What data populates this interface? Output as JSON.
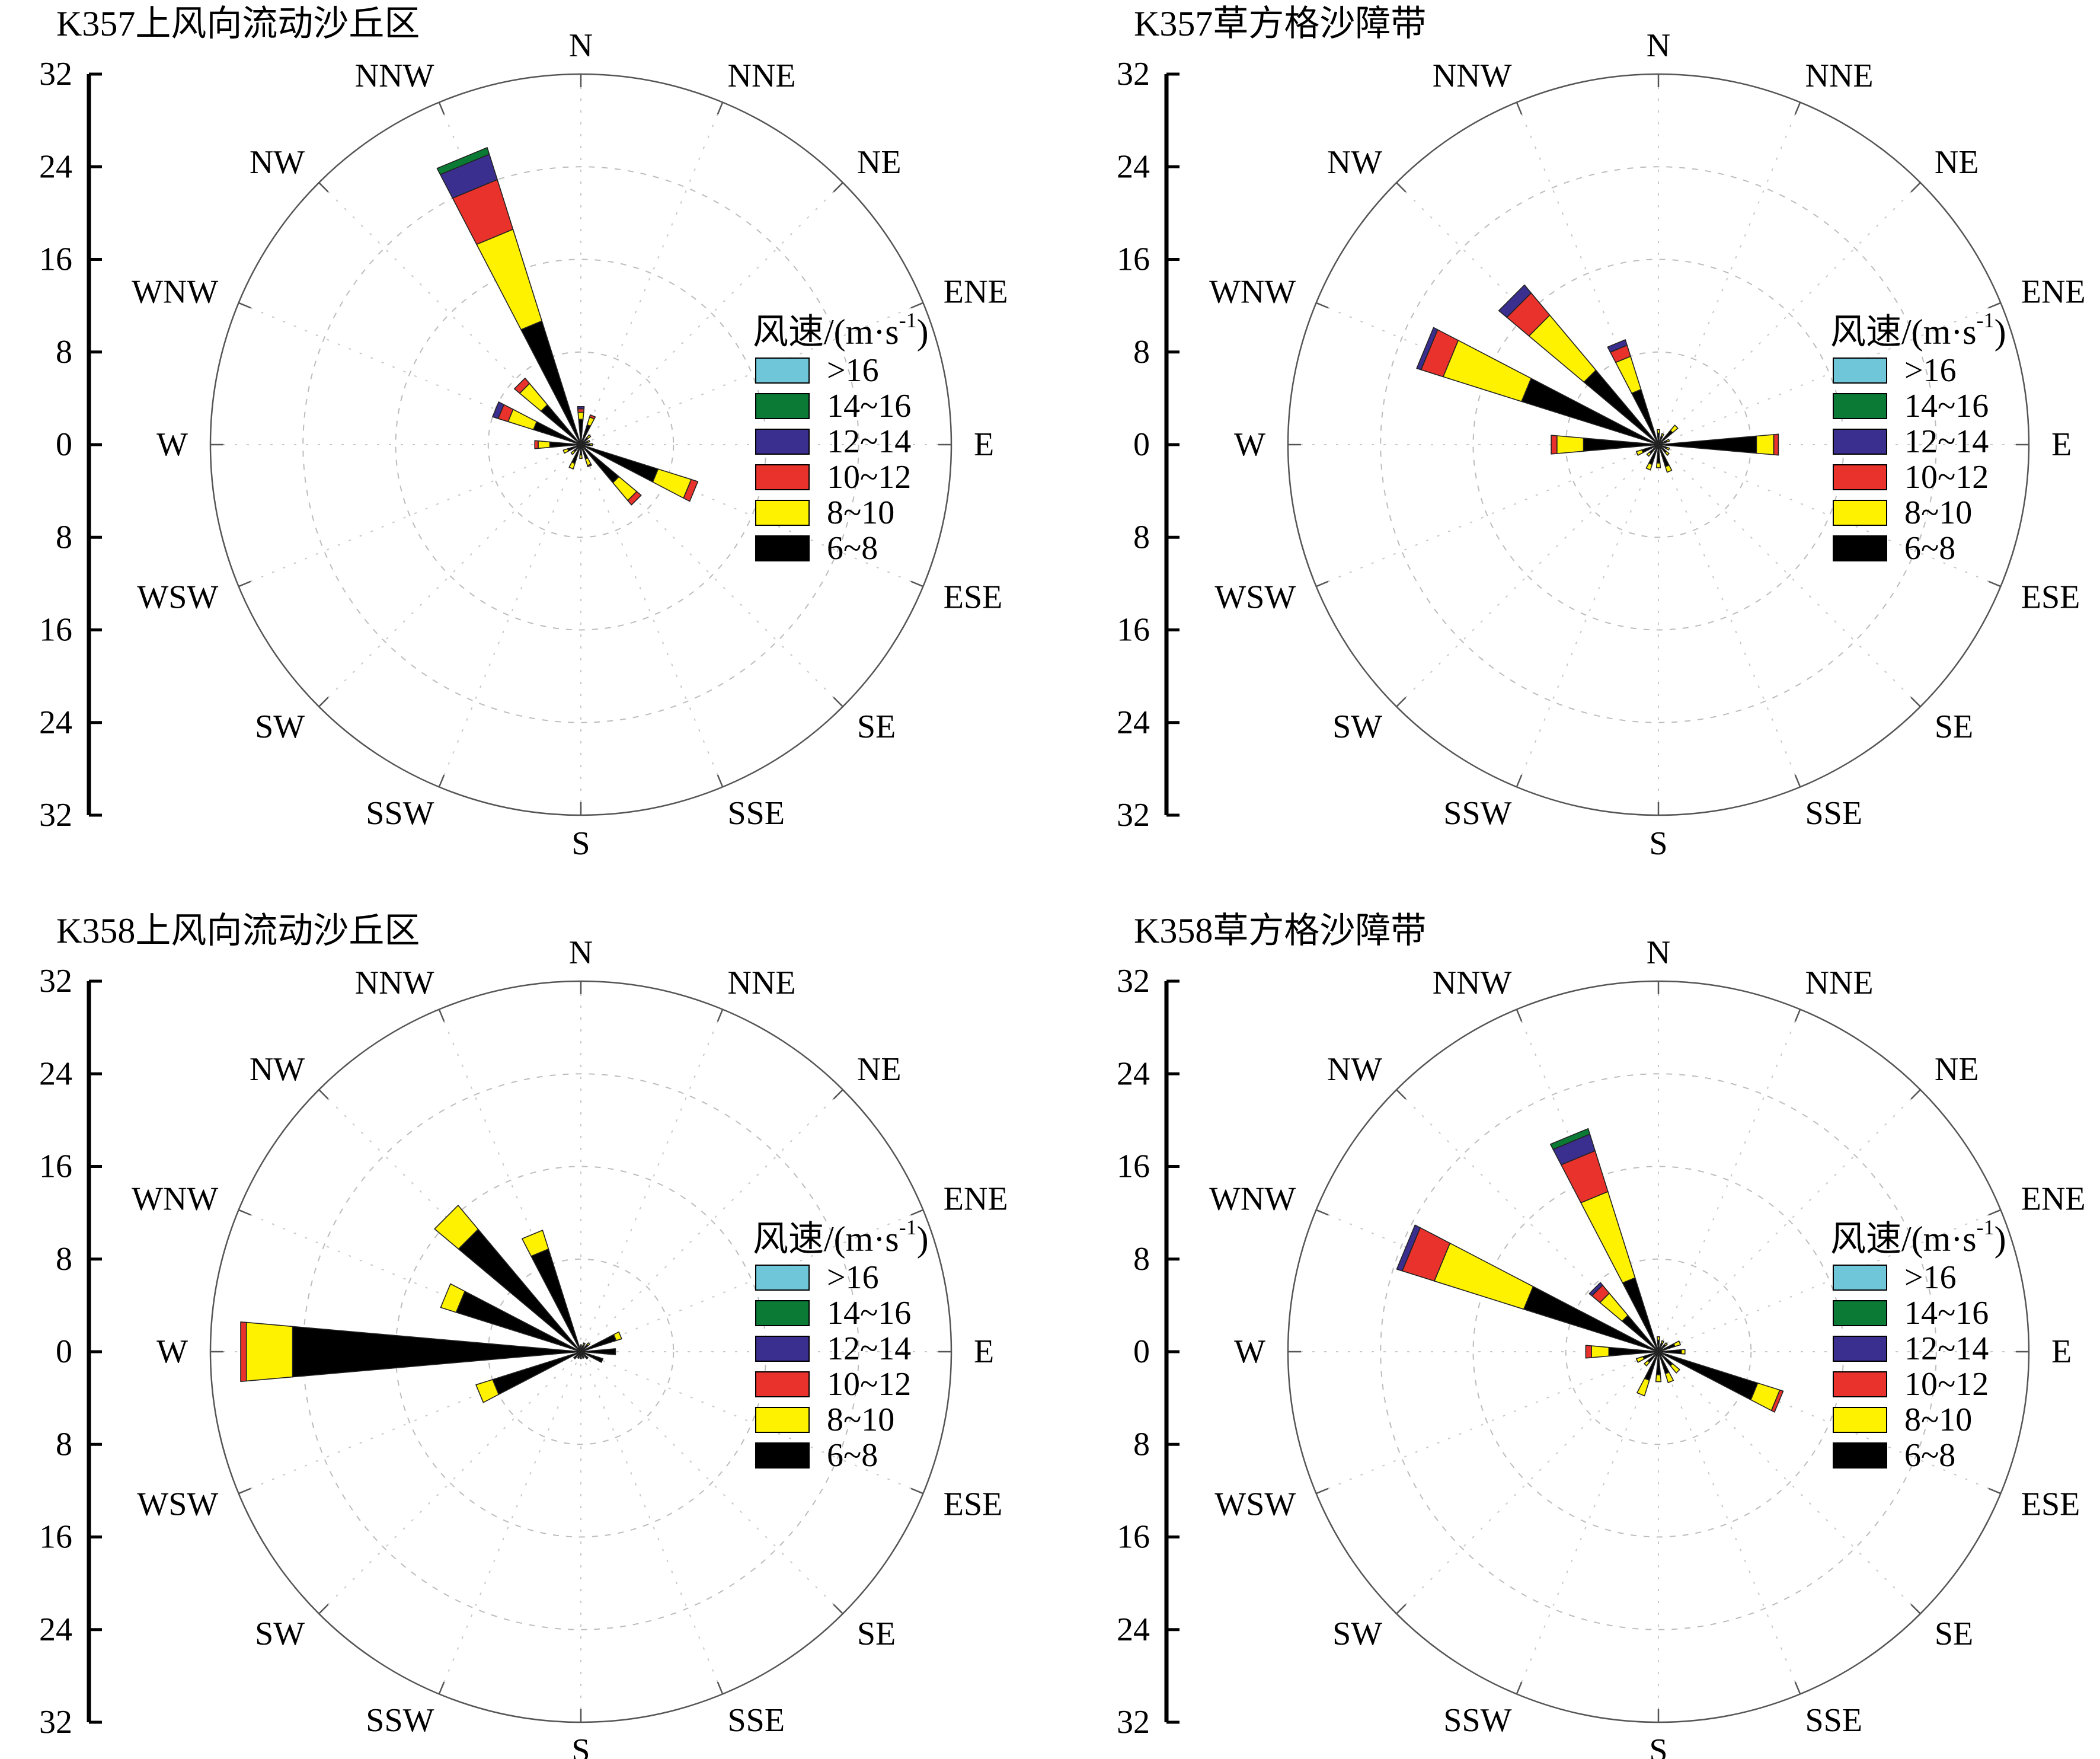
{
  "chart_data": [
    {
      "type": "wind-rose",
      "title": "K357上风向流动沙丘区",
      "directions": [
        "N",
        "NNE",
        "NE",
        "ENE",
        "E",
        "ESE",
        "SE",
        "SSE",
        "S",
        "SSW",
        "SW",
        "WSW",
        "W",
        "WNW",
        "NW",
        "NNW"
      ],
      "radial_tick_labels": [
        "32",
        "24",
        "16",
        "8",
        "0",
        "8",
        "16",
        "24",
        "32"
      ],
      "rmax": 32,
      "legend_title": "风速/(m·s-1)",
      "speed_bins": [
        ">16",
        "14~16",
        "12~14",
        "10~12",
        "8~10",
        "6~8"
      ],
      "bin_colors": [
        "#6ec6d8",
        "#0a7a34",
        "#3a2f8f",
        "#e8322b",
        "#fff200",
        "#000000"
      ],
      "frequencies": {
        "N": [
          0,
          0,
          0.2,
          0.3,
          0.6,
          2.2
        ],
        "NNE": [
          0,
          0,
          0,
          0.2,
          0.7,
          1.8
        ],
        "NE": [
          0,
          0,
          0,
          0,
          0.3,
          0.8
        ],
        "ENE": [
          0,
          0,
          0,
          0,
          0.2,
          0.6
        ],
        "E": [
          0,
          0,
          0,
          0,
          0.2,
          0.8
        ],
        "ESE": [
          0,
          0,
          0,
          0.6,
          3.0,
          7.0
        ],
        "SE": [
          0,
          0,
          0,
          0.5,
          2.0,
          4.3
        ],
        "SSE": [
          0,
          0,
          0,
          0.1,
          0.6,
          1.3
        ],
        "S": [
          0,
          0,
          0,
          0,
          0.3,
          0.9
        ],
        "SSW": [
          0,
          0,
          0,
          0,
          0.5,
          1.7
        ],
        "SW": [
          0,
          0,
          0,
          0,
          0.3,
          0.8
        ],
        "WSW": [
          0,
          0,
          0,
          0,
          0.4,
          1.2
        ],
        "W": [
          0,
          0,
          0,
          0.3,
          1.0,
          2.7
        ],
        "WNW": [
          0,
          0,
          0.5,
          0.9,
          2.3,
          4.3
        ],
        "NW": [
          0,
          0,
          0,
          0.6,
          2.4,
          4.5
        ],
        "NNW": [
          0,
          0.6,
          2.3,
          4.5,
          8.3,
          11.2
        ]
      }
    },
    {
      "type": "wind-rose",
      "title": "K357草方格沙障带",
      "directions": [
        "N",
        "NNE",
        "NE",
        "ENE",
        "E",
        "ESE",
        "SE",
        "SSE",
        "S",
        "SSW",
        "SW",
        "WSW",
        "W",
        "WNW",
        "NW",
        "NNW"
      ],
      "radial_tick_labels": [
        "32",
        "24",
        "16",
        "8",
        "0",
        "8",
        "16",
        "24",
        "32"
      ],
      "rmax": 32,
      "legend_title": "风速/(m·s-1)",
      "speed_bins": [
        ">16",
        "14~16",
        "12~14",
        "10~12",
        "8~10",
        "6~8"
      ],
      "bin_colors": [
        "#6ec6d8",
        "#0a7a34",
        "#3a2f8f",
        "#e8322b",
        "#fff200",
        "#000000"
      ],
      "frequencies": {
        "N": [
          0,
          0,
          0,
          0,
          0.3,
          1.0
        ],
        "NNE": [
          0,
          0,
          0,
          0,
          0.2,
          0.8
        ],
        "NE": [
          0,
          0,
          0,
          0,
          0.6,
          1.6
        ],
        "ENE": [
          0,
          0,
          0,
          0,
          0.2,
          0.8
        ],
        "E": [
          0,
          0,
          0,
          0.4,
          1.5,
          8.5
        ],
        "ESE": [
          0,
          0,
          0,
          0,
          0.2,
          0.8
        ],
        "SE": [
          0,
          0,
          0,
          0,
          0.3,
          0.9
        ],
        "SSE": [
          0,
          0,
          0,
          0,
          0.5,
          2.0
        ],
        "S": [
          0,
          0,
          0,
          0,
          0.4,
          1.6
        ],
        "SSW": [
          0,
          0,
          0,
          0,
          0.5,
          1.8
        ],
        "SW": [
          0,
          0,
          0,
          0,
          0.3,
          1.0
        ],
        "WSW": [
          0,
          0,
          0,
          0,
          0.5,
          1.5
        ],
        "W": [
          0,
          0,
          0,
          0.5,
          2.3,
          6.5
        ],
        "WNW": [
          0,
          0,
          0.4,
          2.0,
          7.1,
          12.4
        ],
        "NW": [
          0,
          0,
          0.9,
          2.5,
          6.2,
          8.4
        ],
        "NNW": [
          0,
          0,
          0.5,
          1.0,
          3.0,
          5.0
        ]
      }
    },
    {
      "type": "wind-rose",
      "title": "K358上风向流动沙丘区",
      "directions": [
        "N",
        "NNE",
        "NE",
        "ENE",
        "E",
        "ESE",
        "SE",
        "SSE",
        "S",
        "SSW",
        "SW",
        "WSW",
        "W",
        "WNW",
        "NW",
        "NNW"
      ],
      "radial_tick_labels": [
        "32",
        "24",
        "16",
        "8",
        "0",
        "8",
        "16",
        "24",
        "32"
      ],
      "rmax": 32,
      "legend_title": "风速/(m·s-1)",
      "speed_bins": [
        ">16",
        "14~16",
        "12~14",
        "10~12",
        "8~10",
        "6~8"
      ],
      "bin_colors": [
        "#6ec6d8",
        "#0a7a34",
        "#3a2f8f",
        "#e8322b",
        "#fff200",
        "#000000"
      ],
      "frequencies": {
        "N": [
          0,
          0,
          0,
          0,
          0.1,
          0.5
        ],
        "NNE": [
          0,
          0,
          0,
          0,
          0.2,
          0.6
        ],
        "NE": [
          0,
          0,
          0,
          0,
          0.2,
          0.8
        ],
        "ENE": [
          0,
          0,
          0,
          0,
          0.5,
          3.2
        ],
        "E": [
          0,
          0,
          0,
          0,
          0,
          3.0
        ],
        "ESE": [
          0,
          0,
          0,
          0,
          0,
          2.0
        ],
        "SE": [
          0,
          0,
          0,
          0,
          0,
          0.8
        ],
        "SSE": [
          0,
          0,
          0,
          0,
          0,
          0.6
        ],
        "S": [
          0,
          0,
          0,
          0,
          0,
          0.6
        ],
        "SSW": [
          0,
          0,
          0,
          0,
          0,
          0.6
        ],
        "SW": [
          0,
          0,
          0,
          0,
          0,
          0.8
        ],
        "WSW": [
          0,
          0,
          0,
          0,
          1.5,
          8.0
        ],
        "W": [
          0,
          0,
          0,
          0.5,
          4.0,
          25.0
        ],
        "WNW": [
          0,
          0,
          0,
          0,
          1.4,
          11.3
        ],
        "NW": [
          0,
          0,
          0,
          0,
          2.7,
          13.8
        ],
        "NNW": [
          0,
          0,
          0,
          0,
          1.7,
          9.3
        ]
      }
    },
    {
      "type": "wind-rose",
      "title": "K358草方格沙障带",
      "directions": [
        "N",
        "NNE",
        "NE",
        "ENE",
        "E",
        "ESE",
        "SE",
        "SSE",
        "S",
        "SSW",
        "SW",
        "WSW",
        "W",
        "WNW",
        "NW",
        "NNW"
      ],
      "radial_tick_labels": [
        "32",
        "24",
        "16",
        "8",
        "0",
        "8",
        "16",
        "24",
        "32"
      ],
      "rmax": 32,
      "legend_title": "风速/(m·s-1)",
      "speed_bins": [
        ">16",
        "14~16",
        "12~14",
        "10~12",
        "8~10",
        "6~8"
      ],
      "bin_colors": [
        "#6ec6d8",
        "#0a7a34",
        "#3a2f8f",
        "#e8322b",
        "#fff200",
        "#000000"
      ],
      "frequencies": {
        "N": [
          0,
          0,
          0,
          0,
          0.3,
          1.0
        ],
        "NNE": [
          0,
          0,
          0,
          0,
          0.2,
          0.8
        ],
        "NE": [
          0,
          0,
          0,
          0,
          0.2,
          0.8
        ],
        "ENE": [
          0,
          0,
          0,
          0,
          0.5,
          1.5
        ],
        "E": [
          0,
          0,
          0,
          0,
          0.3,
          2.0
        ],
        "ESE": [
          0,
          0,
          0,
          0.3,
          2.0,
          9.0
        ],
        "SE": [
          0,
          0,
          0,
          0,
          0.8,
          1.6
        ],
        "SSE": [
          0,
          0,
          0,
          0,
          0.8,
          2.0
        ],
        "S": [
          0,
          0,
          0,
          0,
          0.6,
          2.0
        ],
        "SSW": [
          0,
          0,
          0,
          0,
          1.4,
          2.6
        ],
        "SW": [
          0,
          0,
          0,
          0,
          0.4,
          1.2
        ],
        "WSW": [
          0,
          0,
          0,
          0,
          0.6,
          1.4
        ],
        "W": [
          0,
          0,
          0,
          0.5,
          1.5,
          4.3
        ],
        "WNW": [
          0,
          0,
          0.5,
          2.9,
          8.1,
          12.2
        ],
        "NW": [
          0,
          0,
          0.3,
          0.9,
          2.5,
          4.1
        ],
        "NNW": [
          0,
          0.5,
          1.5,
          3.7,
          7.8,
          6.7
        ]
      }
    }
  ]
}
